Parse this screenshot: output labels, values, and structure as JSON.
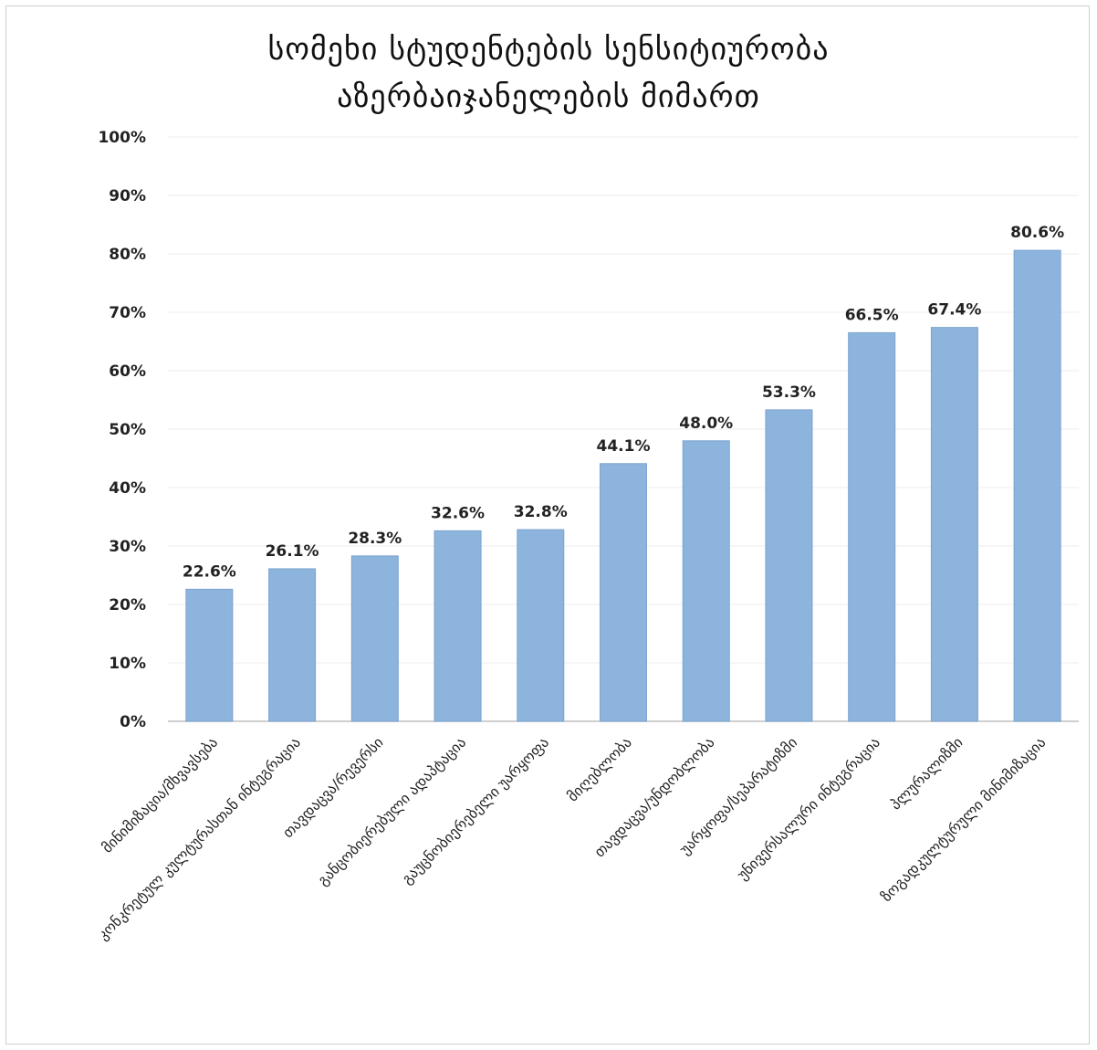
{
  "chart_data": {
    "type": "bar",
    "title_line1": "სომეხი სტუდენტების სენსიტიურობა",
    "title_line2": "აზერბაიჯანელების მიმართ",
    "xlabel": "",
    "ylabel": "",
    "ylim": [
      0,
      100
    ],
    "y_ticks": [
      "0%",
      "10%",
      "20%",
      "30%",
      "40%",
      "50%",
      "60%",
      "70%",
      "80%",
      "90%",
      "100%"
    ],
    "grid": true,
    "legend": "none",
    "categories": [
      "მინიმიზაცია/მხვავსება",
      "კონკრეტულ კულტურასთან ინტეგრაცია",
      "თავდაცვა/რევერსი",
      "განცობიერებული ადაპტაცია",
      "გაუცნობიერებელი უარყოფა",
      "მიღებლობა",
      "თავდაცვა/უნდობლობა",
      "უარყოფა/სეპარატიზმი",
      "უნივერსალური ინტეგრაცია",
      "პლურალიზმი",
      "ზოგადკულტურული მინიმიზაცია"
    ],
    "values": [
      22.6,
      26.1,
      28.3,
      32.6,
      32.8,
      44.1,
      48.0,
      53.3,
      66.5,
      67.4,
      80.6
    ],
    "value_labels": [
      "22.6%",
      "26.1%",
      "28.3%",
      "32.6%",
      "32.8%",
      "44.1%",
      "48.0%",
      "53.3%",
      "66.5%",
      "67.4%",
      "80.6%"
    ],
    "colors": {
      "bar": "#8db4dc",
      "bar_stroke": "#7aa3cf",
      "grid": "#eeeeee",
      "axis": "#bfbfbf"
    }
  }
}
